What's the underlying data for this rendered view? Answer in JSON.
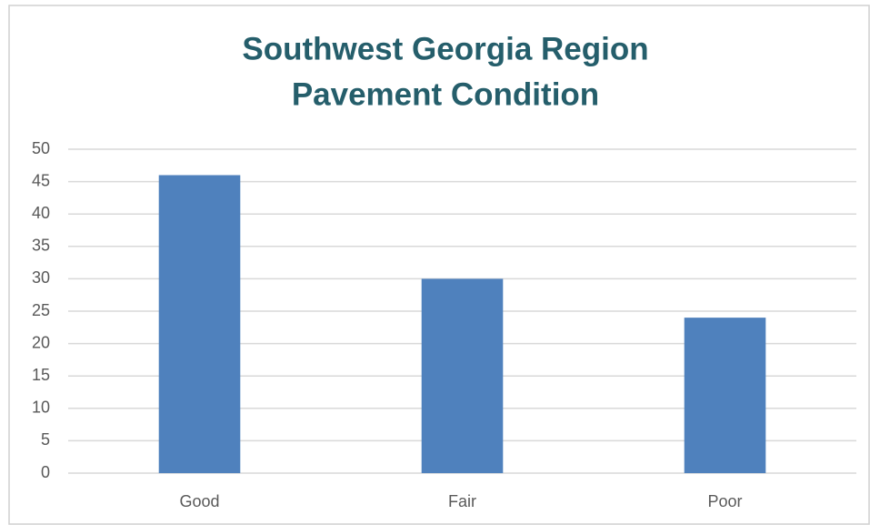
{
  "chart_data": {
    "type": "bar",
    "title": [
      "Southwest Georgia Region",
      "Pavement Condition"
    ],
    "categories": [
      "Good",
      "Fair",
      "Poor"
    ],
    "values": [
      46,
      30,
      24
    ],
    "color": "#4f81bd",
    "ylim": [
      0,
      50
    ],
    "yticks": [
      0,
      5,
      10,
      15,
      20,
      25,
      30,
      35,
      40,
      45,
      50
    ],
    "grid": true
  }
}
